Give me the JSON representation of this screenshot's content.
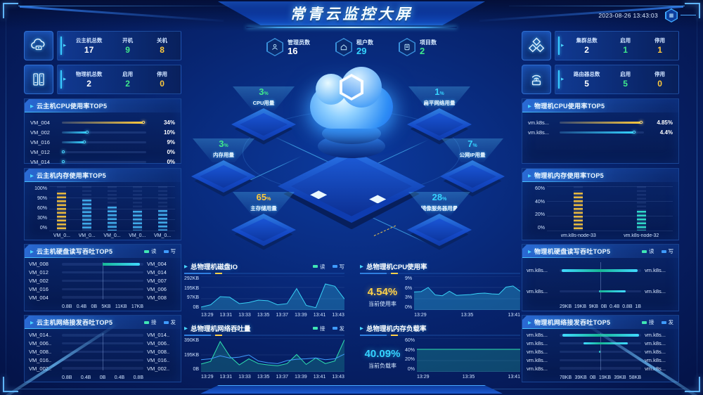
{
  "colors": {
    "accent_cyan": "#35d3ff",
    "accent_green": "#3fe98c",
    "accent_yellow": "#ffc93c",
    "accent_blue": "#3f9bff",
    "panel_border": "#2f6fd0",
    "bg": "#07246f"
  },
  "header": {
    "title": "常青云监控大屏",
    "datetime": "2023-08-26 13:43:03"
  },
  "kpis": [
    {
      "label": "管理员数",
      "value": "16"
    },
    {
      "label": "租户数",
      "value": "29"
    },
    {
      "label": "项目数",
      "value": "2"
    }
  ],
  "left": {
    "stats": [
      {
        "label": "云主机总数",
        "value": "17",
        "on_label": "开机",
        "on_value": "9",
        "off_label": "关机",
        "off_value": "8"
      },
      {
        "label": "物理机总数",
        "value": "2",
        "on_label": "启用",
        "on_value": "2",
        "off_label": "停用",
        "off_value": "0"
      }
    ],
    "cpu": {
      "title": "云主机CPU使用率TOP5",
      "rows": [
        {
          "label": "VM_004",
          "value": "34%",
          "pct": 97,
          "color": "yellow"
        },
        {
          "label": "VM_002",
          "value": "10%",
          "pct": 30,
          "color": "cyan"
        },
        {
          "label": "VM_016",
          "value": "9%",
          "pct": 27,
          "color": "cyan"
        },
        {
          "label": "VM_012",
          "value": "0%",
          "pct": 2,
          "color": "cyan"
        },
        {
          "label": "VM_014",
          "value": "0%",
          "pct": 2,
          "color": "cyan"
        }
      ]
    },
    "mem": {
      "title": "云主机内存使用率TOP5",
      "yticks": [
        "100%",
        "90%",
        "60%",
        "30%",
        "0%"
      ],
      "bars": [
        {
          "label": "VM_0...",
          "pct": 86,
          "color": "yellow"
        },
        {
          "label": "VM_0...",
          "pct": 70,
          "color": "cyan"
        },
        {
          "label": "VM_0...",
          "pct": 54,
          "color": "cyan"
        },
        {
          "label": "VM_0...",
          "pct": 44,
          "color": "cyan"
        },
        {
          "label": "VM_0...",
          "pct": 46,
          "color": "cyan"
        }
      ]
    },
    "disk": {
      "title": "云主机硬盘读写吞吐TOP5",
      "legend": [
        "读",
        "写"
      ],
      "axis": [
        "0.8B",
        "0.4B",
        "0B",
        "5KB",
        "11KB",
        "17KB"
      ],
      "rows": [
        {
          "l": "VM_008",
          "r": "VM_004",
          "lp": 0,
          "rp": 92
        },
        {
          "l": "VM_012",
          "r": "VM_014",
          "lp": 0,
          "rp": 0
        },
        {
          "l": "VM_002",
          "r": "VM_007",
          "lp": 0,
          "rp": 0
        },
        {
          "l": "VM_016",
          "r": "VM_006",
          "lp": 0,
          "rp": 0
        },
        {
          "l": "VM_004",
          "r": "VM_008",
          "lp": 0,
          "rp": 0
        }
      ]
    },
    "net": {
      "title": "云主机网络接发吞吐TOP5",
      "legend": [
        "接",
        "发"
      ],
      "axis": [
        "0.8B",
        "0.4B",
        "0B",
        "0.4B",
        "0.8B"
      ],
      "rows": [
        {
          "l": "VM_014..",
          "r": "VM_014..",
          "lp": 0,
          "rp": 0
        },
        {
          "l": "VM_006..",
          "r": "VM_006..",
          "lp": 0,
          "rp": 0
        },
        {
          "l": "VM_008..",
          "r": "VM_008..",
          "lp": 0,
          "rp": 0
        },
        {
          "l": "VM_016..",
          "r": "VM_016..",
          "lp": 0,
          "rp": 0
        },
        {
          "l": "VM_002..",
          "r": "VM_002..",
          "lp": 0,
          "rp": 0
        }
      ]
    }
  },
  "right": {
    "stats": [
      {
        "label": "集群总数",
        "value": "2",
        "on_label": "启用",
        "on_value": "1",
        "off_label": "停用",
        "off_value": "1"
      },
      {
        "label": "路由器总数",
        "value": "5",
        "on_label": "启用",
        "on_value": "5",
        "off_label": "停用",
        "off_value": "0"
      }
    ],
    "cpu": {
      "title": "物理机CPU使用率TOP5",
      "rows": [
        {
          "label": "vm.k8s...",
          "value": "4.85%",
          "pct": 97,
          "color": "yellow"
        },
        {
          "label": "vm.k8s...",
          "value": "4.4%",
          "pct": 88,
          "color": "cyan"
        }
      ]
    },
    "mem": {
      "title": "物理机内存使用率TOP5",
      "yticks": [
        "60%",
        "40%",
        "20%",
        "0%"
      ],
      "bars": [
        {
          "label": "vm.k8s-node-33",
          "pct": 85,
          "color": "yellow"
        },
        {
          "label": "vm.k8s-node-32",
          "pct": 45,
          "color": "teal"
        }
      ]
    },
    "disk": {
      "title": "物理机硬盘读写吞吐TOP5",
      "legend": [
        "读",
        "写"
      ],
      "axis": [
        "29KB",
        "19KB",
        "9KB",
        "0B",
        "0.4B",
        "0.8B",
        "1B"
      ],
      "rows": [
        {
          "l": "vm.k8s...",
          "r": "vm.k8s...",
          "lp": 95,
          "rp": 92
        },
        {
          "l": "vm.k8s...",
          "r": "vm.k8s...",
          "lp": 3,
          "rp": 62
        }
      ]
    },
    "net": {
      "title": "物理机网络接发吞吐TOP5",
      "legend": [
        "接",
        "发"
      ],
      "axis": [
        "78KB",
        "39KB",
        "0B",
        "19KB",
        "39KB",
        "58KB"
      ],
      "rows": [
        {
          "l": "vm.k8s...",
          "r": "vm.k8s...",
          "lp": 93,
          "rp": 94
        },
        {
          "l": "vm.k8s...",
          "r": "vm.k8s...",
          "lp": 42,
          "rp": 68
        },
        {
          "l": "vm.k8s...",
          "r": "vm.k8s...",
          "lp": 3,
          "rp": 0
        },
        {
          "l": "vm.k8s...",
          "r": "vm.k8s...",
          "lp": 0,
          "rp": 0
        },
        {
          "l": "vm.k8s...",
          "r": "vm.k8s...",
          "lp": 0,
          "rp": 0
        }
      ]
    }
  },
  "scene": {
    "platforms": [
      {
        "name": "CPU用量",
        "value": "3",
        "unit": "%"
      },
      {
        "name": "扁平网络用量",
        "value": "1",
        "unit": "%"
      },
      {
        "name": "内存用量",
        "value": "3",
        "unit": "%"
      },
      {
        "name": "公网IP用量",
        "value": "7",
        "unit": "%"
      },
      {
        "name": "主存储用量",
        "value": "65",
        "unit": "%"
      },
      {
        "name": "镜像服务器用量",
        "value": "28",
        "unit": "%"
      }
    ]
  },
  "charts": {
    "io": {
      "title": "总物理机磁盘IO",
      "legend": [
        "读",
        "写"
      ],
      "yticks": [
        "292KB",
        "195KB",
        "97KB",
        "0B"
      ],
      "xticks": [
        "13:29",
        "13:31",
        "13:33",
        "13:35",
        "13:37",
        "13:39",
        "13:41",
        "13:43"
      ],
      "ymax": 292,
      "series": [
        {
          "name": "读",
          "stroke": "#38d1f6",
          "fillAlpha": 0.28,
          "points": [
            25,
            45,
            115,
            110,
            55,
            65,
            85,
            80,
            45,
            55,
            185,
            40,
            20,
            225,
            205,
            95
          ]
        }
      ]
    },
    "cpu": {
      "title": "总物理机CPU使用率",
      "stat": "4.54%",
      "stat_label": "当前使用率",
      "yticks": [
        "9%",
        "6%",
        "3%",
        "0%"
      ],
      "xticks": [
        "13:29",
        "13:35",
        "13:41"
      ],
      "ymax": 9,
      "series": [
        {
          "name": "使用率",
          "stroke": "#38d1f6",
          "fillAlpha": 0.3,
          "points": [
            4.8,
            4.9,
            6,
            4,
            3.8,
            5,
            3.9,
            4,
            4.1,
            4.4,
            4.5,
            4.3,
            4.2,
            6.1,
            6.4,
            5
          ]
        }
      ]
    },
    "net": {
      "title": "总物理机网络吞吐量",
      "legend": [
        "接",
        "发"
      ],
      "yticks": [
        "390KB",
        "195KB",
        "0B"
      ],
      "xticks": [
        "13:29",
        "13:31",
        "13:33",
        "13:35",
        "13:37",
        "13:39",
        "13:41",
        "13:43"
      ],
      "ymax": 390,
      "series": [
        {
          "name": "接",
          "stroke": "#2fe3b0",
          "fillAlpha": 0.2,
          "points": [
            90,
            120,
            350,
            180,
            80,
            150,
            95,
            80,
            70,
            95,
            200,
            85,
            160,
            95,
            125,
            370
          ]
        },
        {
          "name": "发",
          "stroke": "#3f9bff",
          "fillAlpha": 0,
          "points": [
            140,
            150,
            185,
            160,
            170,
            195,
            125,
            105,
            95,
            130,
            145,
            150,
            160,
            140,
            150,
            205
          ]
        }
      ]
    },
    "mem": {
      "title": "总物理机内存负载率",
      "stat": "40.09%",
      "stat_label": "当前负载率",
      "yticks": [
        "60%",
        "40%",
        "20%",
        "0%"
      ],
      "xticks": [
        "13:29",
        "13:35",
        "13:41"
      ],
      "ymax": 60,
      "series": [
        {
          "name": "负载率",
          "stroke": "#2fe3b0",
          "fillAlpha": 0.22,
          "points": [
            40,
            40,
            40,
            40,
            40,
            40,
            40,
            40,
            40,
            40,
            40,
            40,
            40,
            40,
            40,
            40
          ]
        }
      ]
    }
  }
}
